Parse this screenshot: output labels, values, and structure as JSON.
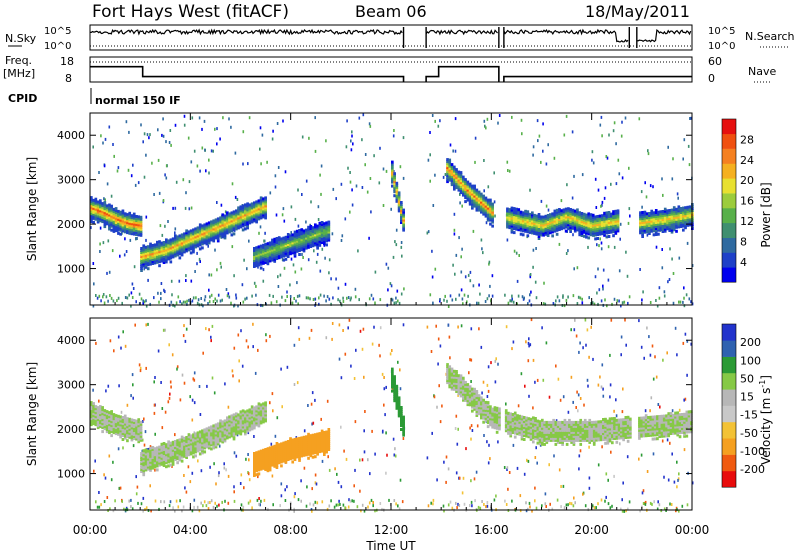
{
  "header": {
    "station": "Fort Hays West (fitACF)",
    "beam": "Beam 06",
    "date": "18/May/2011"
  },
  "nsky_panel": {
    "left_label": "N.Sky",
    "left_ticks": [
      "10^5",
      "10^0"
    ],
    "right_label": "N.Search",
    "right_ticks": [
      "10^5",
      "10^0"
    ]
  },
  "freq_panel": {
    "left_label_line1": "Freq.",
    "left_label_line2": "[MHz]",
    "left_ticks": [
      "18",
      "8"
    ],
    "right_label": "Nave",
    "right_ticks": [
      "60",
      "0"
    ]
  },
  "cpid": {
    "label": "CPID",
    "value": "normal 150 IF"
  },
  "x_axis": {
    "title": "Time UT",
    "ticks": [
      "00:00",
      "04:00",
      "08:00",
      "12:00",
      "16:00",
      "20:00",
      "00:00"
    ]
  },
  "colors": {
    "power": [
      "#0000ee",
      "#1e40c8",
      "#2f6aa0",
      "#3f8f70",
      "#58b04a",
      "#9ccc3c",
      "#e8e030",
      "#f5b020",
      "#f58020",
      "#f05010",
      "#e61010"
    ],
    "velocity": [
      "#e80c0c",
      "#f05a10",
      "#f5a020",
      "#f3c235",
      "#c8c8c8",
      "#b7b7b7",
      "#86c946",
      "#2b9a35",
      "#2f62b0",
      "#2233cc"
    ]
  },
  "chart_data": [
    {
      "type": "heatmap",
      "title": "",
      "xlabel": "Time UT",
      "ylabel": "Slant Range [km]",
      "x_range_hours": [
        0,
        24
      ],
      "ylim": [
        180,
        4500
      ],
      "y_ticks": [
        1000,
        2000,
        3000,
        4000
      ],
      "colorbar": {
        "label": "Power [dB]",
        "range": [
          0,
          32
        ],
        "ticks": [
          "4",
          "8",
          "12",
          "16",
          "20",
          "24",
          "28"
        ]
      },
      "data_gaps_hours": [
        [
          12.5,
          13.4
        ],
        [
          16.3,
          16.5
        ],
        [
          21.5,
          21.8
        ]
      ],
      "echo_bands": [
        {
          "name": "evening band",
          "t": [
            0.0,
            0.5,
            1.0,
            1.5,
            2.0
          ],
          "range_km": [
            2400,
            2300,
            2150,
            2050,
            2000
          ],
          "peak_power_db": 28
        },
        {
          "name": "main band",
          "t": [
            2.0,
            3.0,
            4.0,
            5.0,
            6.0,
            7.0
          ],
          "range_km": [
            1300,
            1450,
            1700,
            1950,
            2200,
            2450
          ],
          "peak_power_db": 24
        },
        {
          "name": "midnight band",
          "t": [
            6.5,
            7.5,
            8.5,
            9.5
          ],
          "range_km": [
            1300,
            1500,
            1700,
            1900
          ],
          "peak_power_db": 16
        },
        {
          "name": "dawn band",
          "t": [
            12.0,
            12.5
          ],
          "range_km": [
            3200,
            2000
          ],
          "peak_power_db": 24
        },
        {
          "name": "morning band",
          "t": [
            14.2,
            15.0,
            16.0
          ],
          "range_km": [
            3300,
            2800,
            2300
          ],
          "peak_power_db": 26
        },
        {
          "name": "day band",
          "t": [
            16.5,
            18.0,
            19.0,
            20.0,
            21.0
          ],
          "range_km": [
            2200,
            2000,
            2200,
            2000,
            2100
          ],
          "peak_power_db": 22
        },
        {
          "name": "late band",
          "t": [
            21.8,
            23.0,
            24.0
          ],
          "range_km": [
            2050,
            2150,
            2250
          ],
          "peak_power_db": 22
        }
      ]
    },
    {
      "type": "heatmap",
      "title": "",
      "xlabel": "Time UT",
      "ylabel": "Slant Range [km]",
      "x_range_hours": [
        0,
        24
      ],
      "ylim": [
        180,
        4500
      ],
      "y_ticks": [
        1000,
        2000,
        3000,
        4000
      ],
      "colorbar": {
        "label": "Velocity [m s^-1]",
        "ticks": [
          "200",
          "100",
          "50",
          "15",
          "-15",
          "-50",
          "-100",
          "-200"
        ]
      },
      "data_gaps_hours": [
        [
          12.5,
          13.4
        ],
        [
          16.3,
          16.5
        ],
        [
          21.5,
          21.8
        ]
      ],
      "echo_bands": [
        {
          "name": "evening band",
          "t": [
            0.0,
            1.0,
            2.0
          ],
          "range_km": [
            2400,
            2150,
            2000
          ],
          "velocity_ms": 0
        },
        {
          "name": "main band",
          "t": [
            2.0,
            4.0,
            6.0,
            7.0
          ],
          "range_km": [
            1300,
            1700,
            2200,
            2450
          ],
          "velocity_ms": 0
        },
        {
          "name": "negative patch",
          "t": [
            6.5,
            8.0,
            9.5
          ],
          "range_km": [
            1300,
            1600,
            1800
          ],
          "velocity_ms": -60
        },
        {
          "name": "dawn band",
          "t": [
            12.0,
            12.5
          ],
          "range_km": [
            3200,
            2000
          ],
          "velocity_ms": 40
        },
        {
          "name": "day band",
          "t": [
            14.2,
            16.0,
            18.0,
            20.0,
            24.0
          ],
          "range_km": [
            3300,
            2300,
            2000,
            2000,
            2200
          ],
          "velocity_ms": 0
        }
      ]
    }
  ]
}
